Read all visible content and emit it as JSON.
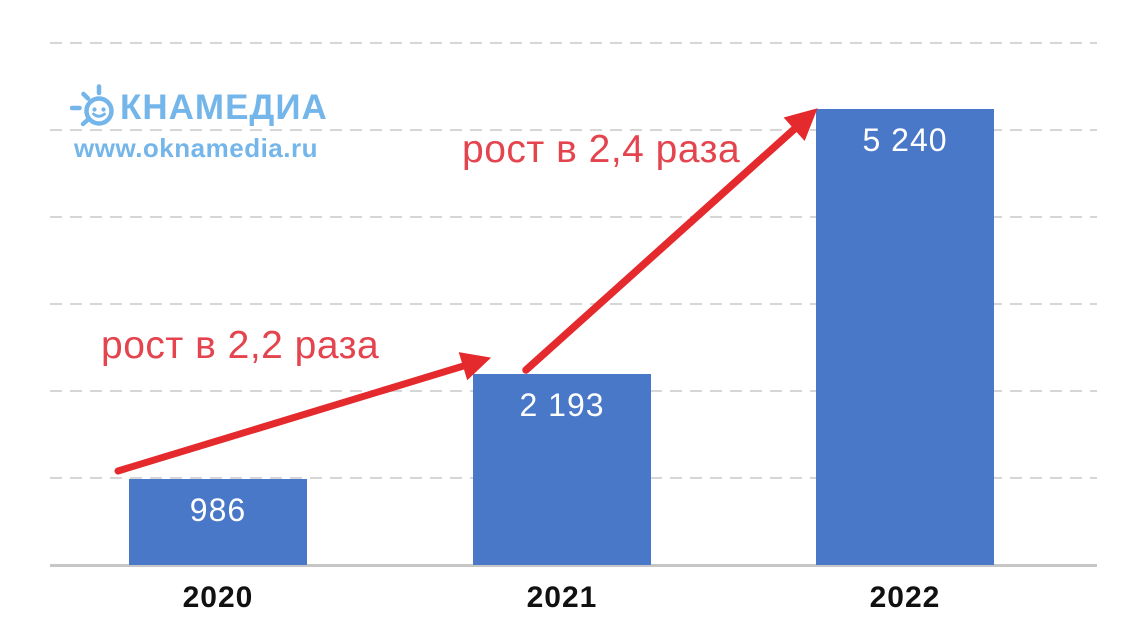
{
  "logo": {
    "name": "ОКНАМЕДИА",
    "name_after_icon": "КНАМЕДИА",
    "url": "www.oknamedia.ru",
    "color": "#74b6ea"
  },
  "chart_data": {
    "type": "bar",
    "title": "",
    "categories": [
      "2020",
      "2021",
      "2022"
    ],
    "values": [
      986,
      2193,
      5240
    ],
    "value_labels": [
      "986",
      "2 193",
      "5 240"
    ],
    "xlabel": "",
    "ylabel": "",
    "ylim": [
      0,
      6000
    ],
    "gridline_interval": 1000,
    "grid": "horizontal-dashed",
    "legend": "none",
    "bar_color": "#4a78c8",
    "value_label_color": "#ffffff",
    "category_label_color": "#111111",
    "annotation_text_color": "#e4444e",
    "arrow_color": "#e52a2e",
    "annotations": [
      {
        "text": "рост в 2,2 раза",
        "arrow_from": "2020",
        "arrow_to": "2021"
      },
      {
        "text": "рост в 2,4 раза",
        "arrow_from": "2021",
        "arrow_to": "2022"
      }
    ]
  }
}
